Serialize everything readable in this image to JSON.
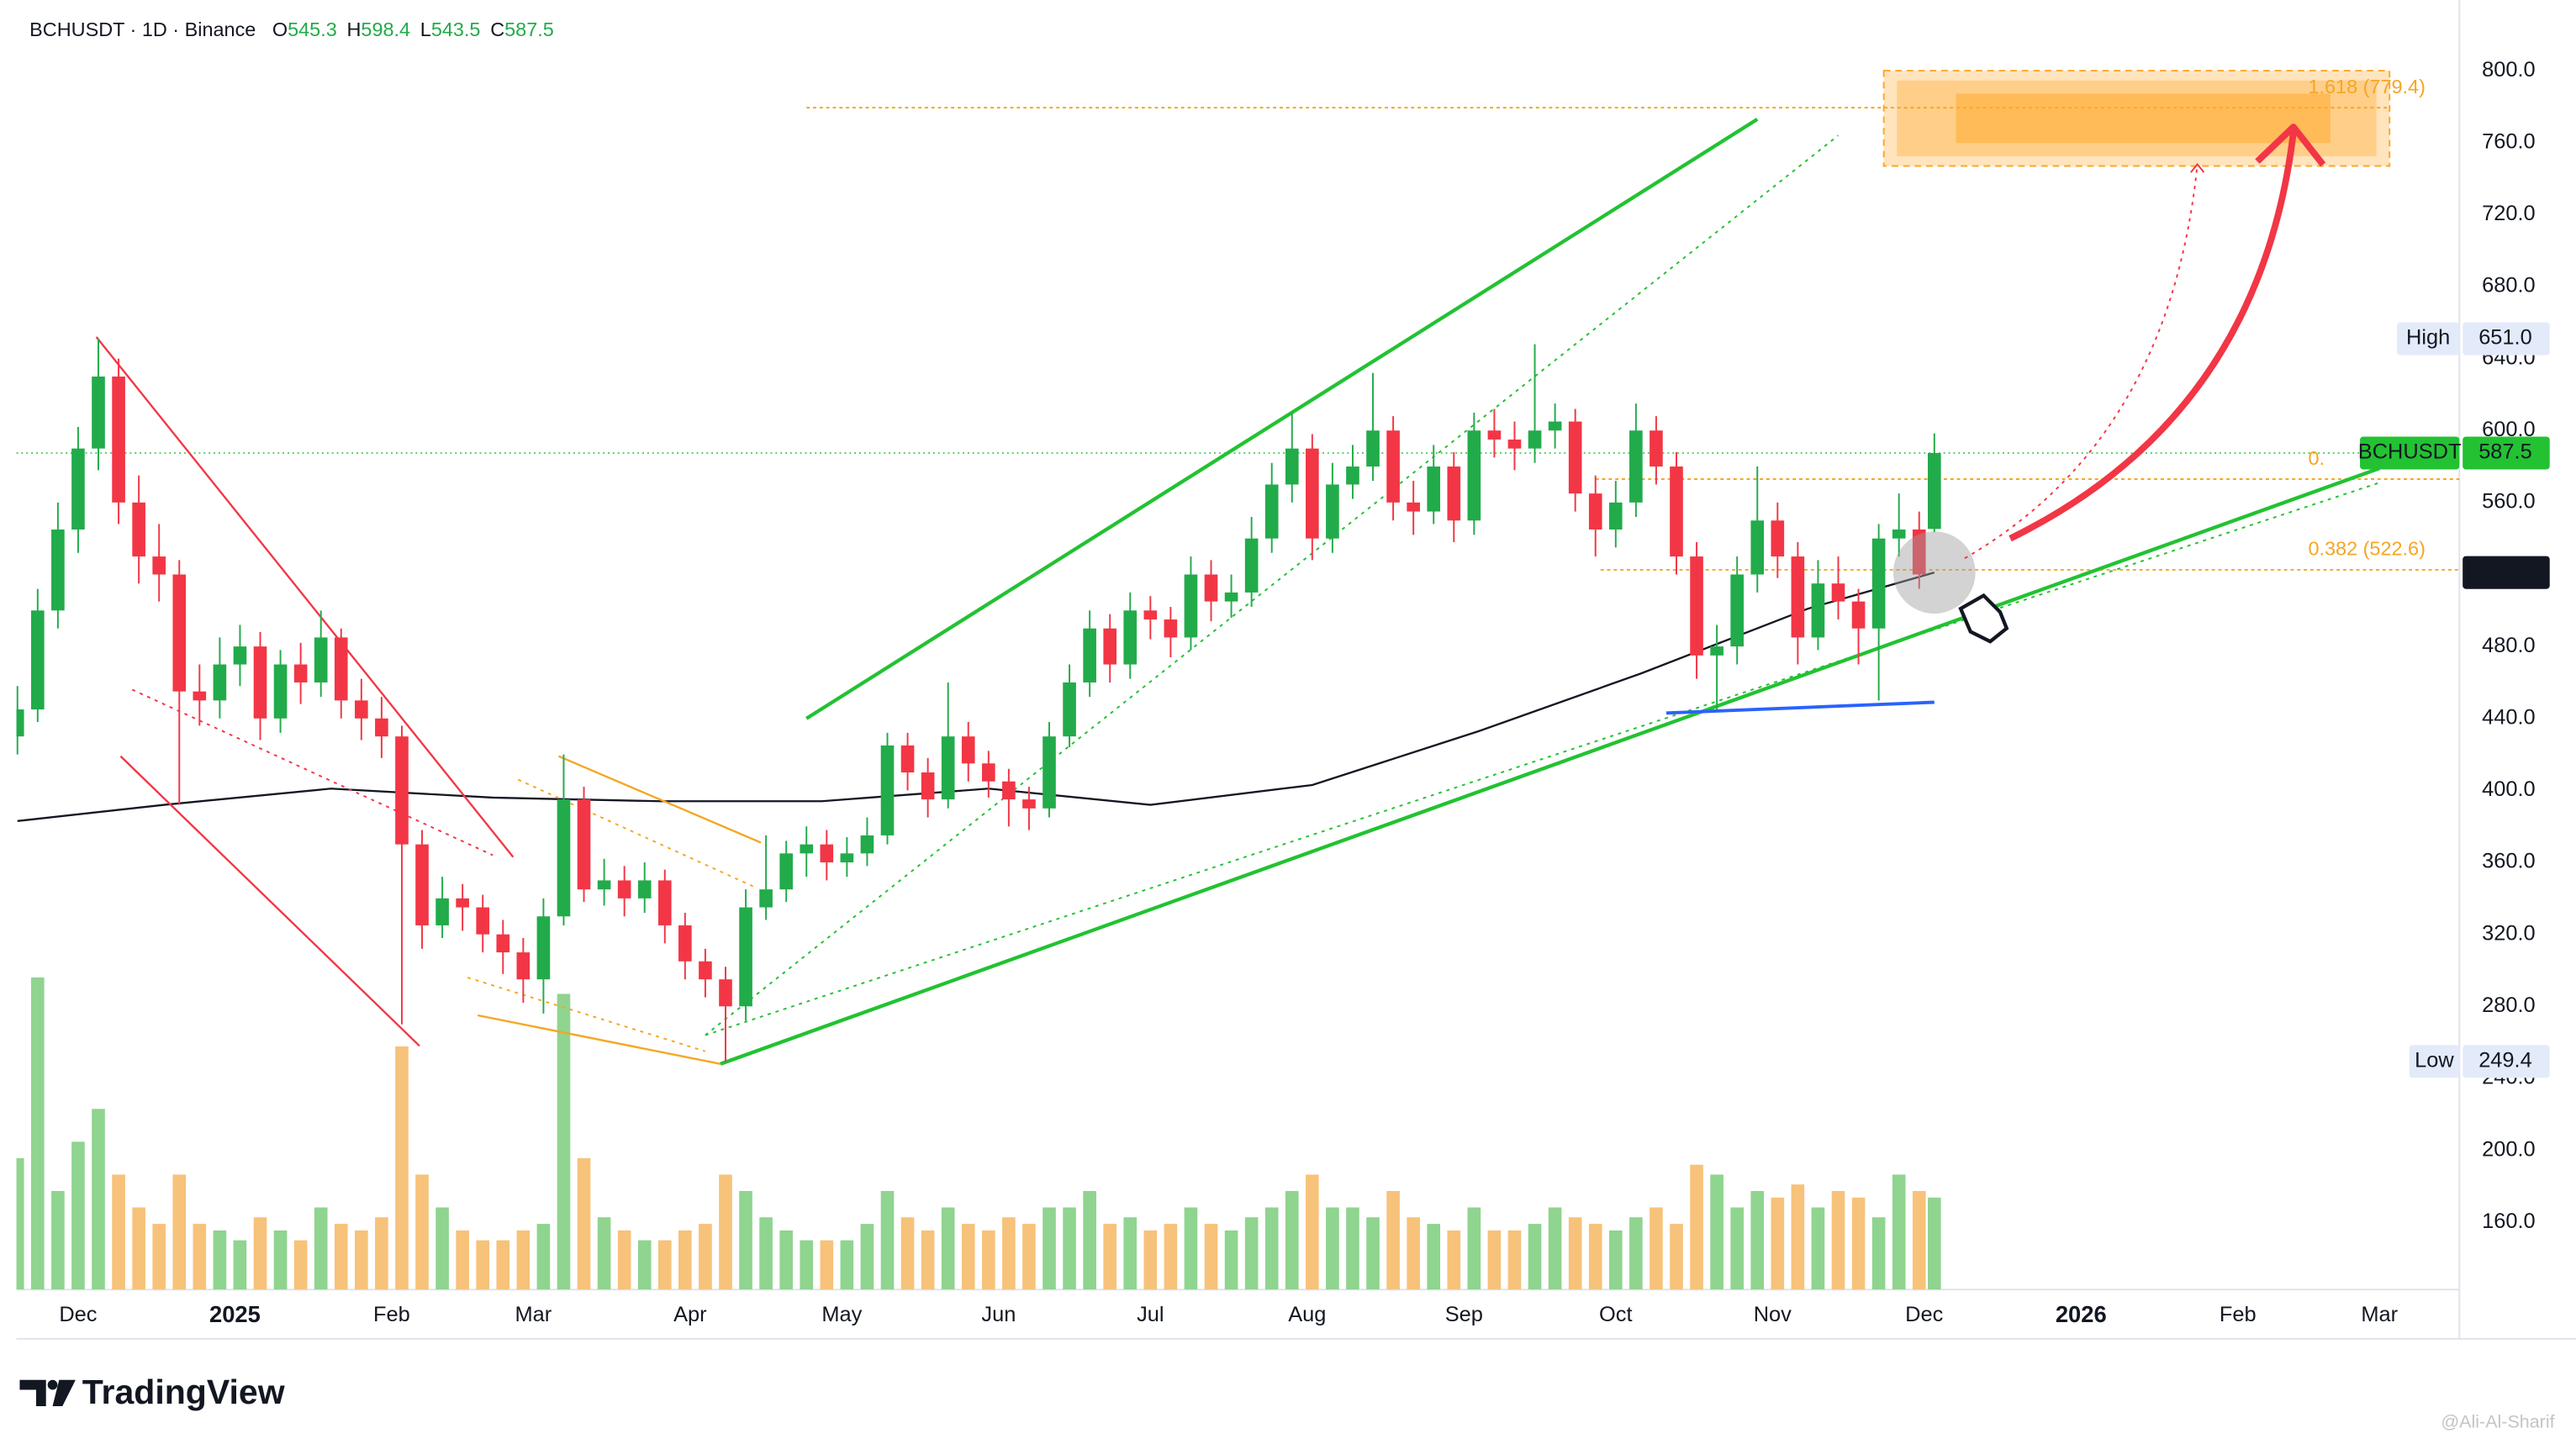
{
  "chart_data": {
    "type": "candlestick",
    "symbol": "BCHUSDT · 1D · Binance",
    "ohlc": [
      {
        "label": "O",
        "value": 545.3
      },
      {
        "label": "H",
        "value": 598.4
      },
      {
        "label": "L",
        "value": 543.5
      },
      {
        "label": "C",
        "value": 587.5
      }
    ],
    "x": [
      -12,
      -8,
      -4,
      0,
      4,
      8,
      12,
      16,
      20,
      24,
      28,
      32,
      36,
      40,
      44,
      48,
      52,
      56,
      60,
      64,
      68,
      72,
      76,
      80,
      84,
      88,
      92,
      96,
      100,
      104,
      108,
      112,
      116,
      120,
      124,
      128,
      132,
      136,
      140,
      144,
      148,
      152,
      156,
      160,
      164,
      168,
      172,
      176,
      180,
      184,
      188,
      192,
      196,
      200,
      204,
      208,
      212,
      216,
      220,
      224,
      228,
      232,
      236,
      240,
      244,
      248,
      252,
      256,
      260,
      264,
      268,
      272,
      276,
      280,
      284,
      288,
      292,
      296,
      300,
      304,
      308,
      312,
      316,
      320,
      324,
      328,
      332,
      336,
      340,
      344,
      348,
      352,
      356,
      360,
      364,
      367
    ],
    "open": [
      430,
      445,
      500,
      545,
      590,
      630,
      560,
      530,
      520,
      455,
      450,
      470,
      480,
      440,
      470,
      460,
      485,
      450,
      440,
      430,
      370,
      325,
      340,
      335,
      320,
      310,
      295,
      330,
      395,
      345,
      350,
      340,
      350,
      325,
      305,
      295,
      280,
      335,
      345,
      365,
      370,
      360,
      365,
      375,
      425,
      410,
      395,
      430,
      415,
      405,
      395,
      390,
      430,
      460,
      490,
      470,
      500,
      495,
      485,
      520,
      505,
      510,
      540,
      570,
      590,
      540,
      570,
      580,
      600,
      560,
      555,
      580,
      550,
      600,
      595,
      590,
      600,
      605,
      565,
      545,
      560,
      600,
      580,
      530,
      475,
      480,
      520,
      550,
      530,
      485,
      515,
      505,
      490,
      540,
      545,
      545.3
    ],
    "high": [
      458,
      512,
      560,
      602,
      651,
      640,
      575,
      548,
      528,
      470,
      485,
      492,
      488,
      478,
      482,
      500,
      490,
      462,
      452,
      436,
      378,
      352,
      348,
      342,
      328,
      318,
      340,
      420,
      402,
      362,
      358,
      360,
      356,
      332,
      312,
      302,
      345,
      375,
      372,
      380,
      378,
      374,
      385,
      432,
      432,
      418,
      460,
      438,
      422,
      412,
      402,
      438,
      470,
      500,
      498,
      510,
      508,
      502,
      530,
      528,
      520,
      552,
      582,
      610,
      598,
      582,
      592,
      632,
      608,
      572,
      592,
      588,
      610,
      612,
      605,
      648,
      615,
      612,
      575,
      572,
      615,
      608,
      588,
      538,
      492,
      530,
      580,
      560,
      538,
      528,
      530,
      512,
      548,
      565,
      555,
      598.4
    ],
    "low": [
      420,
      438,
      490,
      532,
      578,
      548,
      515,
      505,
      392,
      436,
      440,
      458,
      428,
      432,
      448,
      452,
      440,
      428,
      418,
      270,
      312,
      318,
      322,
      310,
      298,
      282,
      276,
      325,
      338,
      336,
      330,
      332,
      315,
      295,
      285,
      249.4,
      272,
      328,
      338,
      352,
      350,
      352,
      358,
      370,
      400,
      385,
      390,
      405,
      396,
      380,
      378,
      385,
      424,
      452,
      460,
      462,
      484,
      474,
      478,
      494,
      496,
      502,
      532,
      560,
      528,
      532,
      562,
      572,
      550,
      542,
      548,
      538,
      542,
      585,
      578,
      582,
      590,
      555,
      530,
      535,
      552,
      570,
      520,
      462,
      445,
      470,
      510,
      518,
      470,
      478,
      495,
      470,
      450,
      530,
      512,
      543.5
    ],
    "close": [
      445,
      500,
      545,
      590,
      630,
      560,
      530,
      520,
      455,
      450,
      470,
      480,
      440,
      470,
      460,
      485,
      450,
      440,
      430,
      370,
      325,
      340,
      335,
      320,
      310,
      295,
      330,
      395,
      345,
      350,
      340,
      350,
      325,
      305,
      295,
      280,
      335,
      345,
      365,
      370,
      360,
      365,
      375,
      425,
      410,
      395,
      430,
      415,
      405,
      395,
      390,
      430,
      460,
      490,
      470,
      500,
      495,
      485,
      520,
      505,
      510,
      540,
      570,
      590,
      540,
      570,
      580,
      600,
      560,
      555,
      580,
      550,
      600,
      595,
      590,
      600,
      605,
      565,
      545,
      560,
      600,
      580,
      530,
      475,
      480,
      520,
      550,
      530,
      485,
      515,
      505,
      490,
      540,
      545,
      520,
      587.5
    ],
    "volume": [
      40,
      95,
      30,
      45,
      55,
      35,
      25,
      20,
      35,
      20,
      18,
      15,
      22,
      18,
      15,
      25,
      20,
      18,
      22,
      74,
      35,
      25,
      18,
      15,
      15,
      18,
      20,
      90,
      40,
      22,
      18,
      15,
      15,
      18,
      20,
      35,
      30,
      22,
      18,
      15,
      15,
      15,
      20,
      30,
      22,
      18,
      25,
      20,
      18,
      22,
      20,
      25,
      25,
      30,
      20,
      22,
      18,
      20,
      25,
      20,
      18,
      22,
      25,
      30,
      35,
      25,
      25,
      22,
      30,
      22,
      20,
      18,
      25,
      18,
      18,
      20,
      25,
      22,
      20,
      18,
      22,
      25,
      20,
      38,
      35,
      25,
      30,
      28,
      32,
      25,
      30,
      28,
      22,
      35,
      30,
      28
    ],
    "vlim": [
      0,
      100
    ],
    "up_color": "#22ab4a",
    "down_color": "#f23645",
    "volume_up_color": "#8fd48f",
    "volume_down_color": "#f7c27a",
    "ma": {
      "color": "#131722",
      "x": [
        -12,
        17,
        50,
        82,
        115,
        147,
        180,
        212,
        244,
        277,
        309,
        342,
        367
      ],
      "values": [
        383,
        392,
        401,
        396,
        394,
        394,
        401,
        392,
        403,
        433,
        465,
        501,
        521.1
      ]
    },
    "xlim": [
      -12.2,
      470.8
    ],
    "xticks": [
      {
        "value": 0,
        "label": "Dec"
      },
      {
        "value": 31,
        "label": "2025"
      },
      {
        "value": 62,
        "label": "Feb"
      },
      {
        "value": 90,
        "label": "Mar"
      },
      {
        "value": 121,
        "label": "Apr"
      },
      {
        "value": 151,
        "label": "May"
      },
      {
        "value": 182,
        "label": "Jun"
      },
      {
        "value": 212,
        "label": "Jul"
      },
      {
        "value": 243,
        "label": "Aug"
      },
      {
        "value": 274,
        "label": "Sep"
      },
      {
        "value": 304,
        "label": "Oct"
      },
      {
        "value": 335,
        "label": "Nov"
      },
      {
        "value": 365,
        "label": "Dec"
      },
      {
        "value": 396,
        "label": "2026"
      },
      {
        "value": 427,
        "label": "Feb"
      },
      {
        "value": 455,
        "label": "Mar"
      }
    ],
    "ylim": [
      122.6,
      834.7
    ],
    "yticks": [
      {
        "value": 160,
        "label": "160.0"
      },
      {
        "value": 200,
        "label": "200.0"
      },
      {
        "value": 240,
        "label": "240.0"
      },
      {
        "value": 280,
        "label": "280.0"
      },
      {
        "value": 320,
        "label": "320.0"
      },
      {
        "value": 360,
        "label": "360.0"
      },
      {
        "value": 400,
        "label": "400.0"
      },
      {
        "value": 440,
        "label": "440.0"
      },
      {
        "value": 480,
        "label": "480.0"
      },
      {
        "value": 520,
        "label": "520.0"
      },
      {
        "value": 560,
        "label": "560.0"
      },
      {
        "value": 600,
        "label": "600.0"
      },
      {
        "value": 640,
        "label": "640.0"
      },
      {
        "value": 680,
        "label": "680.0"
      },
      {
        "value": 720,
        "label": "720.0"
      },
      {
        "value": 760,
        "label": "760.0"
      },
      {
        "value": 800,
        "label": "800.0"
      }
    ],
    "drawings": [
      {
        "x": [
          3.6,
          86
        ],
        "y": [
          652,
          363
        ],
        "color": "#f23645",
        "width": 1.2
      },
      {
        "x": [
          8.4,
          67.5
        ],
        "y": [
          419,
          258
        ],
        "color": "#f23645",
        "width": 1.2
      },
      {
        "x": [
          10.7,
          82
        ],
        "y": [
          456,
          364
        ],
        "color": "#f23645",
        "width": 1,
        "dash": true
      },
      {
        "x": [
          95,
          135
        ],
        "y": [
          419,
          371
        ],
        "color": "#f5a623",
        "width": 1.2
      },
      {
        "x": [
          79,
          127
        ],
        "y": [
          275,
          248
        ],
        "color": "#f5a623",
        "width": 1.2
      },
      {
        "x": [
          87,
          134
        ],
        "y": [
          406,
          346
        ],
        "color": "#f5a623",
        "width": 1,
        "dash": true
      },
      {
        "x": [
          77,
          124
        ],
        "y": [
          296,
          255
        ],
        "color": "#f5a623",
        "width": 1,
        "dash": true
      },
      {
        "x": [
          127,
          455
        ],
        "y": [
          248,
          579
        ],
        "color": "#22c232",
        "width": 2.2
      },
      {
        "x": [
          144,
          332
        ],
        "y": [
          440,
          773
        ],
        "color": "#22c232",
        "width": 2.2
      },
      {
        "x": [
          124,
          348
        ],
        "y": [
          264,
          764
        ],
        "color": "#22c232",
        "width": 1,
        "dash": true
      },
      {
        "x": [
          124,
          455
        ],
        "y": [
          264,
          571
        ],
        "color": "#22c232",
        "width": 1,
        "dash": true
      },
      {
        "x": [
          314,
          367
        ],
        "y": [
          443,
          449
        ],
        "color": "#2962ff",
        "width": 2
      }
    ],
    "fib_levels": [
      {
        "label": "1.618 (779.4)",
        "value": 779.4,
        "x": [
          144,
          457
        ]
      },
      {
        "label": "0.",
        "value": 573,
        "x": [
          300,
          471
        ]
      },
      {
        "label": "0.382 (522.6)",
        "value": 522.6,
        "x": [
          301,
          471
        ]
      }
    ],
    "last_line": {
      "value": 587.5,
      "color": "#22c232"
    },
    "target_zone": {
      "x": [
        357,
        457
      ],
      "y": [
        747,
        800
      ],
      "color": "#ffa726"
    },
    "projections": [
      {
        "x": [
          382,
          438
        ],
        "y": [
          540,
          766
        ],
        "color": "#f23645",
        "width": 4,
        "arrow": true
      },
      {
        "x": [
          373,
          419
        ],
        "y": [
          529,
          748
        ],
        "color": "#f23645",
        "width": 1,
        "dash": true
      }
    ],
    "price_labels": [
      {
        "name": "High",
        "value": 651,
        "value_label": "651.0",
        "style": "light"
      },
      {
        "name": "BCHUSDT",
        "value": 587.5,
        "style": "green"
      },
      {
        "value": 521.1,
        "style": "dark"
      },
      {
        "name": "Low",
        "value": 249.4,
        "style": "light"
      }
    ]
  },
  "brand": "TradingView",
  "watermark": "@Ali-Al-Sharif"
}
